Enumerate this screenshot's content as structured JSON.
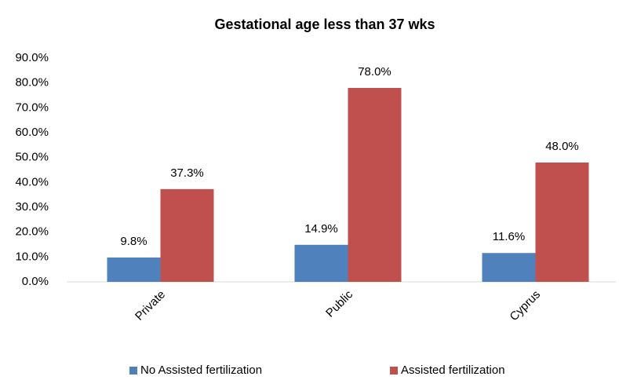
{
  "chart_data": {
    "type": "bar",
    "title": "Gestational age less than 37 wks",
    "categories": [
      "Private",
      "Public",
      "Cyprus"
    ],
    "series": [
      {
        "name": "No Assisted fertilization",
        "color": "#4f81bd",
        "values": [
          9.8,
          14.9,
          11.6
        ],
        "value_labels": [
          "9.8%",
          "14.9%",
          "11.6%"
        ]
      },
      {
        "name": "Assisted fertilization",
        "color": "#c0504d",
        "values": [
          37.3,
          78.0,
          48.0
        ],
        "value_labels": [
          "37.3%",
          "78.0%",
          "48.0%"
        ]
      }
    ],
    "ylim": [
      0,
      90
    ],
    "yticks": [
      {
        "value": 0,
        "label": "0.0%"
      },
      {
        "value": 10,
        "label": "10.0%"
      },
      {
        "value": 20,
        "label": "20.0%"
      },
      {
        "value": 30,
        "label": "30.0%"
      },
      {
        "value": 40,
        "label": "40.0%"
      },
      {
        "value": 50,
        "label": "50.0%"
      },
      {
        "value": 60,
        "label": "60.0%"
      },
      {
        "value": 70,
        "label": "70.0%"
      },
      {
        "value": 80,
        "label": "80.0%"
      },
      {
        "value": 90,
        "label": "90.0%"
      }
    ],
    "grid": false,
    "legend": "bottom"
  }
}
